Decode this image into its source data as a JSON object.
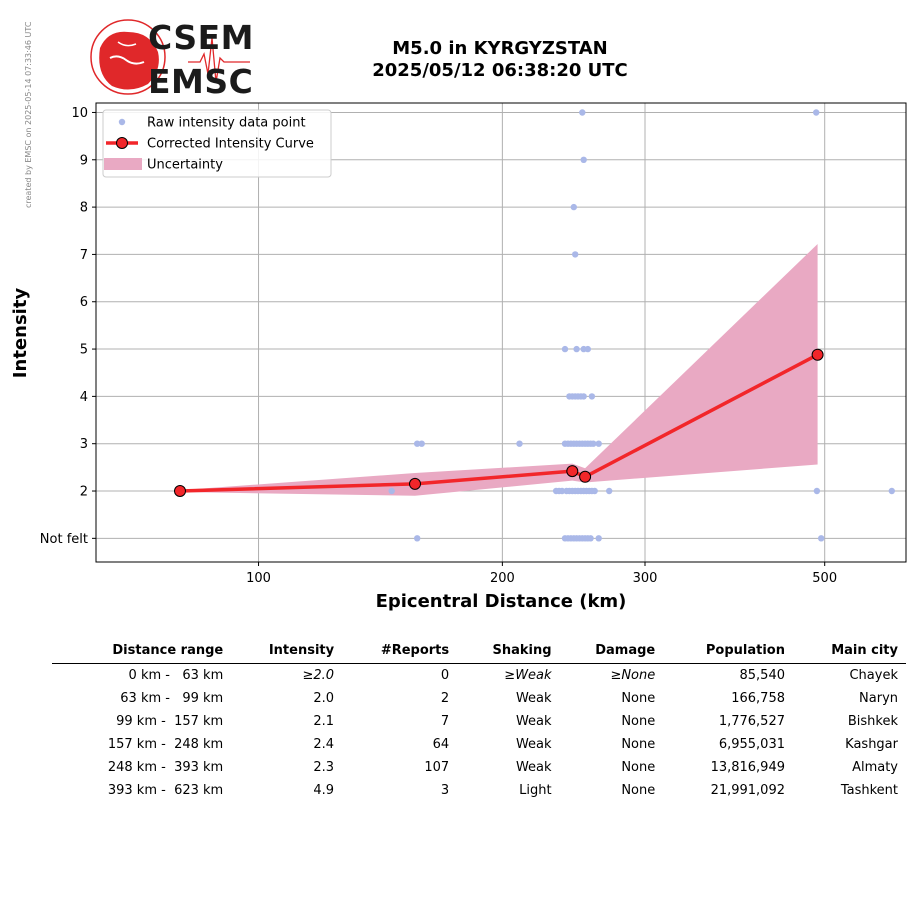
{
  "side_note": "created by EMSC on 2025-05-14 07:33:46 UTC",
  "logo": {
    "line1": "CSEM",
    "line2": "EMSC"
  },
  "title": {
    "line1": "M5.0 in KYRGYZSTAN",
    "line2": "2025/05/12 06:38:20 UTC"
  },
  "colors": {
    "raw": "#aab8e8",
    "curve": "#f2262a",
    "uncertainty": "#e9a9c3",
    "grid": "#b0b0b0"
  },
  "chart_data": {
    "type": "scatter",
    "xlabel": "Epicentral Distance (km)",
    "ylabel": "Intensity",
    "x_scale": "log",
    "xlim": [
      63,
      630
    ],
    "ylim": [
      0.5,
      10.2
    ],
    "x_ticks": [
      100,
      200,
      300,
      500
    ],
    "y_ticks": [
      1,
      2,
      3,
      4,
      5,
      6,
      7,
      8,
      9,
      10
    ],
    "y_tick_labels": [
      "Not felt",
      "2",
      "3",
      "4",
      "5",
      "6",
      "7",
      "8",
      "9",
      "10"
    ],
    "grid": true,
    "legend_position": "top-left",
    "legend": [
      "Raw intensity data point",
      "Corrected Intensity Curve",
      "Uncertainty"
    ],
    "raw_points": [
      [
        251,
        10
      ],
      [
        488,
        10
      ],
      [
        252,
        9
      ],
      [
        245,
        8
      ],
      [
        246,
        7
      ],
      [
        239,
        5
      ],
      [
        247,
        5
      ],
      [
        252,
        5
      ],
      [
        255,
        5
      ],
      [
        242,
        4
      ],
      [
        244,
        4
      ],
      [
        246,
        4
      ],
      [
        248,
        4
      ],
      [
        250,
        4
      ],
      [
        252,
        4
      ],
      [
        258,
        4
      ],
      [
        157,
        3
      ],
      [
        159,
        3
      ],
      [
        210,
        3
      ],
      [
        239,
        3
      ],
      [
        241,
        3
      ],
      [
        243,
        3
      ],
      [
        245,
        3
      ],
      [
        247,
        3
      ],
      [
        249,
        3
      ],
      [
        251,
        3
      ],
      [
        253,
        3
      ],
      [
        255,
        3
      ],
      [
        257,
        3
      ],
      [
        259,
        3
      ],
      [
        263,
        3
      ],
      [
        146,
        2
      ],
      [
        233,
        2
      ],
      [
        235,
        2
      ],
      [
        237,
        2
      ],
      [
        240,
        2
      ],
      [
        242,
        2
      ],
      [
        244,
        2
      ],
      [
        246,
        2
      ],
      [
        248,
        2
      ],
      [
        250,
        2
      ],
      [
        252,
        2
      ],
      [
        254,
        2
      ],
      [
        256,
        2
      ],
      [
        258,
        2
      ],
      [
        260,
        2
      ],
      [
        271,
        2
      ],
      [
        489,
        2
      ],
      [
        605,
        2
      ],
      [
        157,
        1
      ],
      [
        239,
        1
      ],
      [
        241,
        1
      ],
      [
        243,
        1
      ],
      [
        245,
        1
      ],
      [
        247,
        1
      ],
      [
        249,
        1
      ],
      [
        251,
        1
      ],
      [
        253,
        1
      ],
      [
        255,
        1
      ],
      [
        257,
        1
      ],
      [
        263,
        1
      ],
      [
        495,
        1
      ]
    ],
    "curve": {
      "x": [
        80,
        156,
        244,
        253,
        490
      ],
      "y": [
        2.0,
        2.15,
        2.42,
        2.3,
        4.88
      ]
    },
    "uncertainty": {
      "x": [
        80,
        156,
        244,
        253,
        490
      ],
      "upper": [
        2.02,
        2.38,
        2.58,
        2.48,
        7.22
      ],
      "lower": [
        1.98,
        1.9,
        2.22,
        2.18,
        2.56
      ]
    }
  },
  "table": {
    "headers": [
      "Distance range",
      "Intensity",
      "#Reports",
      "Shaking",
      "Damage",
      "Population",
      "Main city"
    ],
    "rows": [
      [
        "  0 km -   63 km",
        "≥2.0",
        "0",
        "≥Weak",
        "≥None",
        "85,540",
        "Chayek"
      ],
      [
        " 63 km -   99 km",
        "2.0",
        "2",
        "Weak",
        "None",
        "166,758",
        "Naryn"
      ],
      [
        " 99 km -  157 km",
        "2.1",
        "7",
        "Weak",
        "None",
        "1,776,527",
        "Bishkek"
      ],
      [
        "157 km -  248 km",
        "2.4",
        "64",
        "Weak",
        "None",
        "6,955,031",
        "Kashgar"
      ],
      [
        "248 km -  393 km",
        "2.3",
        "107",
        "Weak",
        "None",
        "13,816,949",
        "Almaty"
      ],
      [
        "393 km -  623 km",
        "4.9",
        "3",
        "Light",
        "None",
        "21,991,092",
        "Tashkent"
      ]
    ]
  }
}
